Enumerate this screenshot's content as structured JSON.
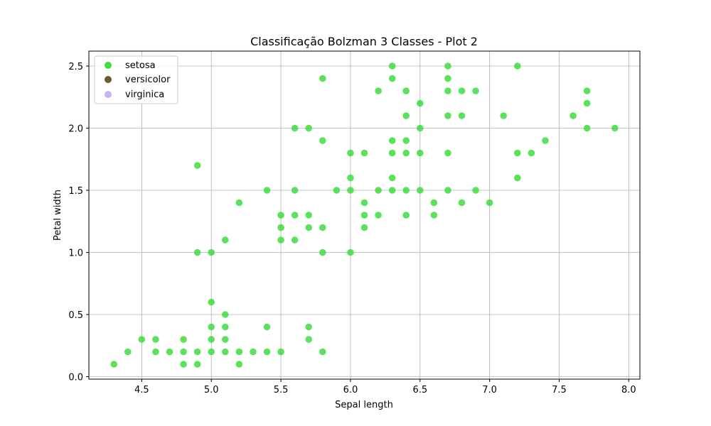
{
  "chart_data": {
    "type": "scatter",
    "title": "Classificação Bolzman 3 Classes - Plot 2",
    "xlabel": "Sepal length",
    "ylabel": "Petal width",
    "xlim": [
      4.12,
      8.08
    ],
    "ylim": [
      -0.02,
      2.62
    ],
    "xticks": [
      4.5,
      5.0,
      5.5,
      6.0,
      6.5,
      7.0,
      7.5,
      8.0
    ],
    "xtick_labels": [
      "4.5",
      "5.0",
      "5.5",
      "6.0",
      "6.5",
      "7.0",
      "7.5",
      "8.0"
    ],
    "yticks": [
      0.0,
      0.5,
      1.0,
      1.5,
      2.0,
      2.5
    ],
    "ytick_labels": [
      "0.0",
      "0.5",
      "1.0",
      "1.5",
      "2.0",
      "2.5"
    ],
    "grid": true,
    "legend_position": "top-left",
    "legend": [
      {
        "name": "setosa",
        "color": "#3fdc3f"
      },
      {
        "name": "versicolor",
        "color": "#6b5a2e"
      },
      {
        "name": "virginica",
        "color": "#c9b3f5"
      }
    ],
    "series": [
      {
        "name": "setosa",
        "color": "#3fdc3f",
        "points": [
          [
            4.3,
            0.1
          ],
          [
            4.4,
            0.2
          ],
          [
            4.5,
            0.3
          ],
          [
            4.6,
            0.3
          ],
          [
            4.6,
            0.2
          ],
          [
            4.7,
            0.2
          ],
          [
            4.8,
            0.3
          ],
          [
            4.8,
            0.2
          ],
          [
            4.8,
            0.1
          ],
          [
            4.9,
            0.2
          ],
          [
            4.9,
            0.1
          ],
          [
            4.9,
            1.0
          ],
          [
            4.9,
            1.7
          ],
          [
            5.0,
            0.6
          ],
          [
            5.0,
            0.4
          ],
          [
            5.0,
            0.3
          ],
          [
            5.0,
            0.2
          ],
          [
            5.0,
            1.0
          ],
          [
            5.1,
            0.5
          ],
          [
            5.1,
            0.4
          ],
          [
            5.1,
            0.3
          ],
          [
            5.1,
            0.2
          ],
          [
            5.1,
            1.1
          ],
          [
            5.2,
            0.2
          ],
          [
            5.2,
            0.1
          ],
          [
            5.2,
            1.4
          ],
          [
            5.3,
            0.2
          ],
          [
            5.4,
            0.4
          ],
          [
            5.4,
            0.2
          ],
          [
            5.4,
            1.5
          ],
          [
            5.5,
            0.2
          ],
          [
            5.5,
            1.3
          ],
          [
            5.5,
            1.2
          ],
          [
            5.5,
            1.1
          ],
          [
            5.6,
            1.5
          ],
          [
            5.6,
            1.3
          ],
          [
            5.6,
            1.1
          ],
          [
            5.6,
            2.0
          ],
          [
            5.7,
            0.4
          ],
          [
            5.7,
            0.3
          ],
          [
            5.7,
            1.3
          ],
          [
            5.7,
            1.2
          ],
          [
            5.7,
            2.0
          ],
          [
            5.8,
            0.2
          ],
          [
            5.8,
            1.2
          ],
          [
            5.8,
            1.0
          ],
          [
            5.8,
            1.9
          ],
          [
            5.8,
            2.4
          ],
          [
            5.9,
            1.5
          ],
          [
            6.0,
            1.0
          ],
          [
            6.0,
            1.5
          ],
          [
            6.0,
            1.6
          ],
          [
            6.0,
            1.8
          ],
          [
            6.1,
            1.2
          ],
          [
            6.1,
            1.3
          ],
          [
            6.1,
            1.4
          ],
          [
            6.1,
            1.8
          ],
          [
            6.2,
            1.3
          ],
          [
            6.2,
            1.5
          ],
          [
            6.2,
            2.3
          ],
          [
            6.3,
            1.5
          ],
          [
            6.3,
            1.6
          ],
          [
            6.3,
            1.8
          ],
          [
            6.3,
            1.9
          ],
          [
            6.3,
            2.4
          ],
          [
            6.3,
            2.5
          ],
          [
            6.4,
            1.3
          ],
          [
            6.4,
            1.5
          ],
          [
            6.4,
            1.8
          ],
          [
            6.4,
            1.9
          ],
          [
            6.4,
            2.1
          ],
          [
            6.4,
            2.3
          ],
          [
            6.5,
            1.5
          ],
          [
            6.5,
            1.8
          ],
          [
            6.5,
            2.0
          ],
          [
            6.5,
            2.2
          ],
          [
            6.6,
            1.3
          ],
          [
            6.6,
            1.4
          ],
          [
            6.7,
            1.5
          ],
          [
            6.7,
            1.8
          ],
          [
            6.7,
            2.1
          ],
          [
            6.7,
            2.3
          ],
          [
            6.7,
            2.4
          ],
          [
            6.7,
            2.5
          ],
          [
            6.8,
            1.4
          ],
          [
            6.8,
            2.1
          ],
          [
            6.8,
            2.3
          ],
          [
            6.9,
            1.5
          ],
          [
            6.9,
            2.3
          ],
          [
            7.0,
            1.4
          ],
          [
            7.1,
            2.1
          ],
          [
            7.2,
            1.6
          ],
          [
            7.2,
            1.8
          ],
          [
            7.2,
            2.5
          ],
          [
            7.3,
            1.8
          ],
          [
            7.4,
            1.9
          ],
          [
            7.6,
            2.1
          ],
          [
            7.7,
            2.0
          ],
          [
            7.7,
            2.2
          ],
          [
            7.7,
            2.3
          ],
          [
            7.9,
            2.0
          ]
        ]
      },
      {
        "name": "versicolor",
        "color": "#6b5a2e",
        "points": []
      },
      {
        "name": "virginica",
        "color": "#c9b3f5",
        "points": []
      }
    ]
  }
}
